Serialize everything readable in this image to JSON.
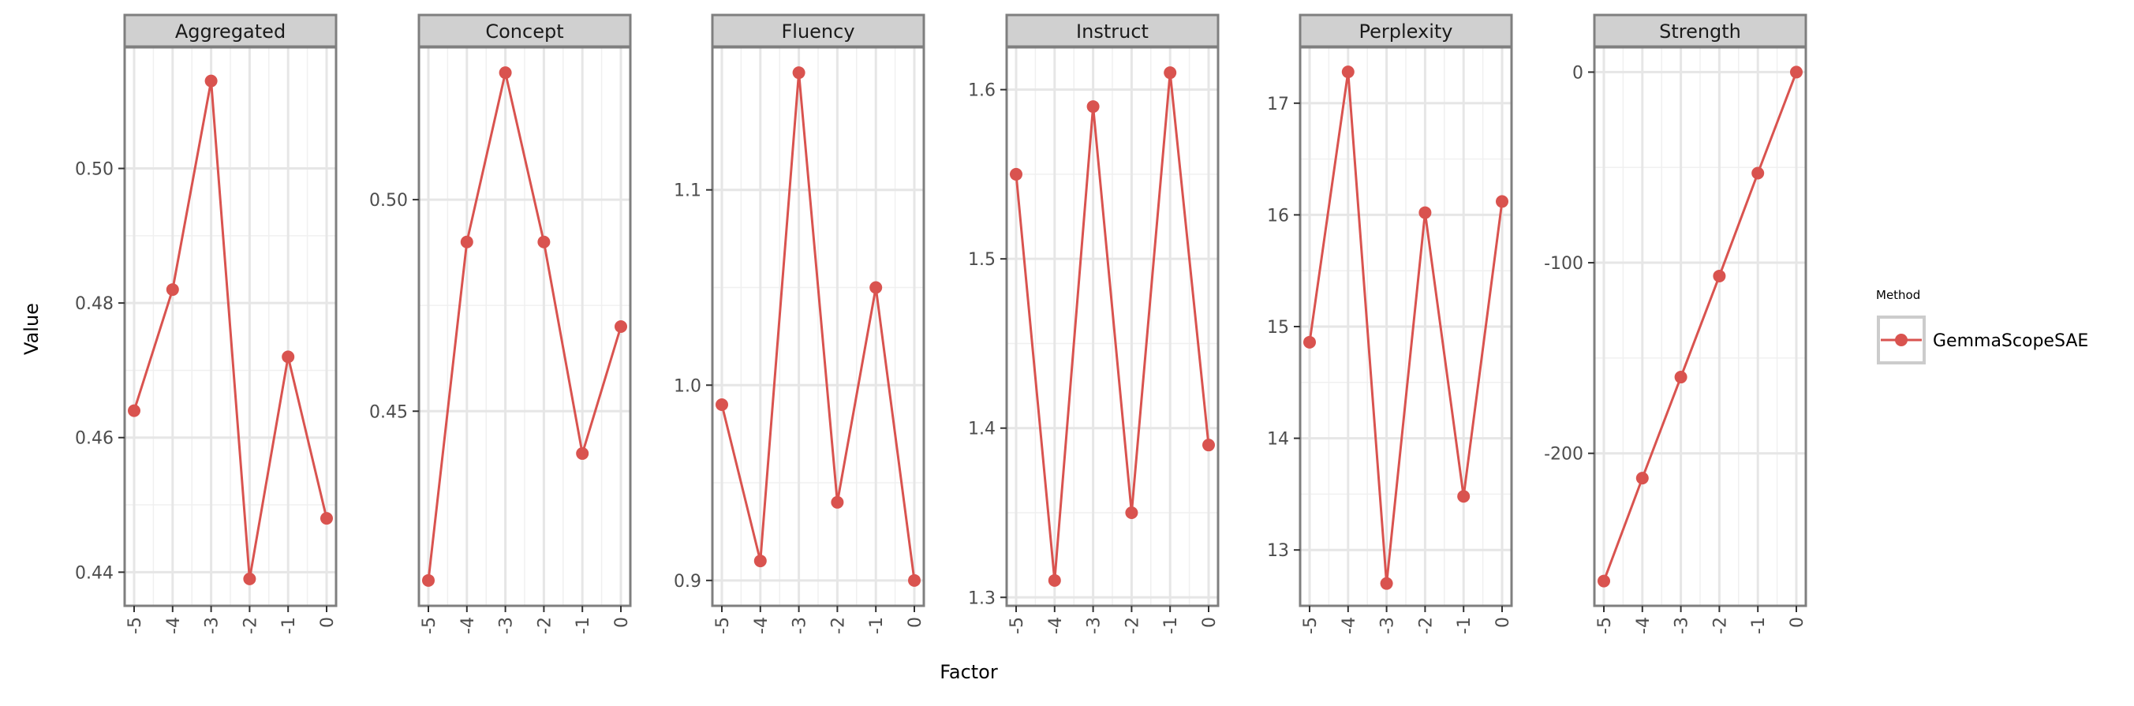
{
  "chart_data": {
    "type": "line",
    "xlabel": "Factor",
    "ylabel": "Value",
    "legend": {
      "title": "Method",
      "placement": "right",
      "entries": [
        "GemmaScopeSAE"
      ]
    },
    "colors": {
      "series": "#d9534f",
      "strip_fill": "#d0d0d0",
      "strip_border": "#7f7f7f",
      "grid": "#e6e6e6"
    },
    "x": [
      -5,
      -4,
      -3,
      -2,
      -1,
      0
    ],
    "x_tick_labels": [
      "-5",
      "-4",
      "-3",
      "-2",
      "-1",
      "0"
    ],
    "grid": true,
    "panels": [
      {
        "title": "Aggregated",
        "series": [
          {
            "name": "GemmaScopeSAE",
            "values": [
              0.464,
              0.482,
              0.513,
              0.439,
              0.472,
              0.448
            ]
          }
        ],
        "ylim": [
          0.435,
          0.518
        ],
        "yticks": [
          0.44,
          0.46,
          0.48,
          0.5
        ],
        "ytick_labels": [
          "0.44",
          "0.46",
          "0.48",
          "0.50"
        ]
      },
      {
        "title": "Concept",
        "series": [
          {
            "name": "GemmaScopeSAE",
            "values": [
              0.41,
              0.49,
              0.53,
              0.49,
              0.44,
              0.47
            ]
          }
        ],
        "ylim": [
          0.404,
          0.536
        ],
        "yticks": [
          0.45,
          0.5
        ],
        "ytick_labels": [
          "0.45",
          "0.50"
        ]
      },
      {
        "title": "Fluency",
        "series": [
          {
            "name": "GemmaScopeSAE",
            "values": [
              0.99,
              0.91,
              1.16,
              0.94,
              1.05,
              0.9
            ]
          }
        ],
        "ylim": [
          0.887,
          1.173
        ],
        "yticks": [
          0.9,
          1.0,
          1.1
        ],
        "ytick_labels": [
          "0.9",
          "1.0",
          "1.1"
        ]
      },
      {
        "title": "Instruct",
        "series": [
          {
            "name": "GemmaScopeSAE",
            "values": [
              1.55,
              1.31,
              1.59,
              1.35,
              1.61,
              1.39
            ]
          }
        ],
        "ylim": [
          1.295,
          1.625
        ],
        "yticks": [
          1.3,
          1.4,
          1.5,
          1.6
        ],
        "ytick_labels": [
          "1.3",
          "1.4",
          "1.5",
          "1.6"
        ]
      },
      {
        "title": "Perplexity",
        "series": [
          {
            "name": "GemmaScopeSAE",
            "values": [
              14.86,
              17.28,
              12.7,
              16.02,
              13.48,
              16.12
            ]
          }
        ],
        "ylim": [
          12.5,
          17.5
        ],
        "yticks": [
          13,
          14,
          15,
          16,
          17
        ],
        "ytick_labels": [
          "13",
          "14",
          "15",
          "16",
          "17"
        ]
      },
      {
        "title": "Strength",
        "series": [
          {
            "name": "GemmaScopeSAE",
            "values": [
              -267,
              -213,
              -160,
              -107,
              -53,
              0
            ]
          }
        ],
        "ylim": [
          -280,
          13
        ],
        "yticks": [
          -200,
          -100,
          0
        ],
        "ytick_labels": [
          "-200",
          "-100",
          "0"
        ]
      }
    ]
  }
}
